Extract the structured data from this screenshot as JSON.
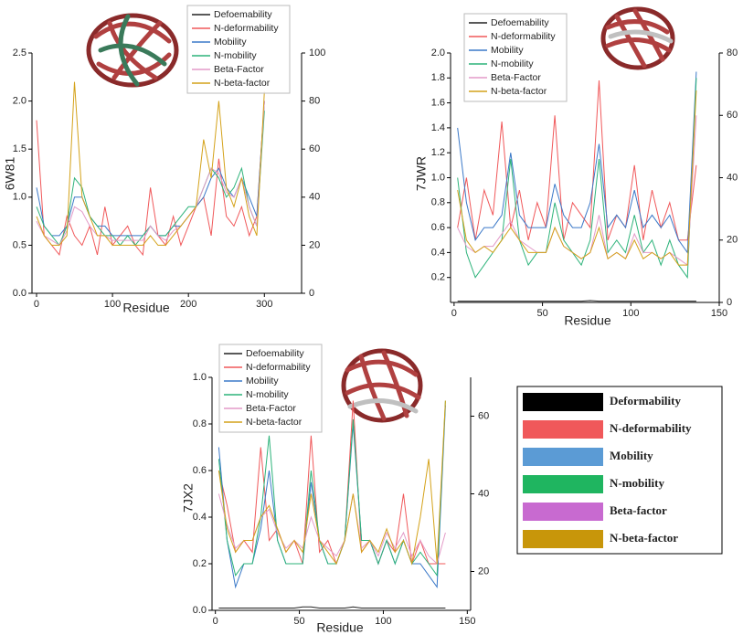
{
  "chart_data": [
    {
      "type": "line",
      "y_label": "6W81",
      "x_label": "Residue",
      "x": [
        0,
        10,
        20,
        30,
        40,
        50,
        60,
        70,
        80,
        90,
        100,
        110,
        120,
        130,
        140,
        150,
        160,
        170,
        180,
        190,
        200,
        210,
        220,
        230,
        240,
        250,
        260,
        270,
        280,
        290,
        300
      ],
      "xlim": [
        -6,
        349
      ],
      "xticks": [
        0,
        100,
        200,
        300
      ],
      "ylim": [
        0,
        2.5
      ],
      "yticks": [
        {
          "value": 0,
          "label": "0.0"
        },
        0.5,
        {
          "value": 1,
          "label": "1.0"
        },
        1.5,
        {
          "value": 2,
          "label": "2.0"
        },
        2.5
      ],
      "y2lim": [
        0,
        100
      ],
      "y2ticks": [
        0,
        20,
        40,
        60,
        80,
        100
      ],
      "series": [
        {
          "name": "Defoemability",
          "color": "#222222",
          "values": [
            0,
            0,
            0,
            0,
            0,
            0,
            0,
            0,
            0,
            0,
            0,
            0,
            0,
            0,
            0,
            0,
            0,
            0,
            0,
            0,
            0,
            0,
            0,
            0,
            0,
            0,
            0,
            0,
            0,
            0,
            0
          ]
        },
        {
          "name": "N-deformability",
          "color": "#f0585a",
          "values": [
            1.8,
            0.6,
            0.5,
            0.4,
            0.8,
            0.6,
            0.5,
            0.7,
            0.4,
            0.9,
            0.5,
            0.6,
            0.7,
            0.5,
            0.4,
            1.1,
            0.6,
            0.5,
            0.8,
            0.5,
            0.7,
            0.9,
            1.0,
            0.6,
            1.4,
            0.8,
            0.7,
            0.9,
            0.6,
            0.8,
            2.0
          ]
        },
        {
          "name": "Mobility",
          "color": "#3a78c8",
          "values": [
            1.1,
            0.7,
            0.6,
            0.6,
            0.7,
            1.0,
            1.0,
            0.8,
            0.7,
            0.7,
            0.6,
            0.6,
            0.6,
            0.6,
            0.6,
            0.7,
            0.6,
            0.6,
            0.7,
            0.7,
            0.8,
            0.9,
            1.0,
            1.2,
            1.3,
            1.1,
            1.0,
            1.2,
            1.0,
            0.8,
            2.0
          ]
        },
        {
          "name": "N-mobility",
          "color": "#2db37a",
          "values": [
            0.9,
            0.7,
            0.6,
            0.5,
            0.7,
            1.2,
            1.1,
            0.8,
            0.7,
            0.6,
            0.6,
            0.5,
            0.6,
            0.5,
            0.6,
            0.7,
            0.6,
            0.6,
            0.7,
            0.8,
            0.9,
            0.9,
            1.1,
            1.3,
            1.2,
            1.0,
            1.1,
            1.3,
            0.9,
            0.7,
            1.9
          ]
        },
        {
          "name": "Beta-Factor",
          "color": "#e39ac8",
          "axis": "y2",
          "values": [
            30,
            24,
            22,
            20,
            26,
            36,
            34,
            28,
            24,
            24,
            22,
            22,
            22,
            22,
            22,
            28,
            24,
            22,
            26,
            28,
            32,
            36,
            44,
            52,
            50,
            42,
            40,
            48,
            36,
            28,
            80
          ]
        },
        {
          "name": "N-beta-factor",
          "color": "#d4a21a",
          "values": [
            0.8,
            0.6,
            0.5,
            0.5,
            0.6,
            2.2,
            1.0,
            0.8,
            0.6,
            0.6,
            0.5,
            0.5,
            0.5,
            0.5,
            0.5,
            0.6,
            0.5,
            0.5,
            0.6,
            0.7,
            0.8,
            0.9,
            1.6,
            1.2,
            2.0,
            1.1,
            0.9,
            1.2,
            0.8,
            0.6,
            2.1
          ]
        }
      ]
    },
    {
      "type": "line",
      "y_label": "7JWR",
      "x_label": "Residue",
      "x": [
        2,
        7,
        12,
        17,
        22,
        27,
        32,
        37,
        42,
        47,
        52,
        57,
        62,
        67,
        72,
        77,
        82,
        87,
        92,
        97,
        102,
        107,
        112,
        117,
        122,
        127,
        132,
        137
      ],
      "xlim": [
        -2,
        150
      ],
      "xticks": [
        0,
        50,
        100,
        150
      ],
      "ylim": [
        0,
        2.0
      ],
      "yticks": [
        0.2,
        0.4,
        0.6,
        0.8,
        {
          "value": 1,
          "label": "1.0"
        },
        1.2,
        1.4,
        1.6,
        1.8,
        {
          "value": 2,
          "label": "2.0"
        }
      ],
      "y2lim": [
        0,
        80
      ],
      "y2ticks": [
        0,
        20,
        40,
        60,
        80
      ],
      "series": [
        {
          "name": "Defoemability",
          "color": "#222222",
          "values": [
            0.01,
            0.01,
            0.01,
            0.01,
            0.01,
            0.01,
            0.01,
            0.01,
            0.01,
            0.01,
            0.01,
            0.01,
            0.01,
            0.01,
            0.01,
            0.015,
            0.01,
            0.01,
            0.01,
            0.01,
            0.01,
            0.01,
            0.01,
            0.01,
            0.01,
            0.01,
            0.01,
            0.01
          ]
        },
        {
          "name": "N-deformability",
          "color": "#f0585a",
          "values": [
            0.6,
            1.0,
            0.5,
            0.9,
            0.7,
            1.45,
            0.6,
            0.9,
            0.5,
            0.8,
            0.6,
            1.5,
            0.5,
            0.8,
            0.7,
            0.6,
            1.78,
            0.5,
            0.7,
            0.6,
            1.1,
            0.5,
            0.9,
            0.6,
            0.8,
            0.5,
            0.5,
            1.1
          ]
        },
        {
          "name": "Mobility",
          "color": "#3a78c8",
          "values": [
            1.4,
            0.8,
            0.5,
            0.6,
            0.6,
            0.7,
            1.2,
            0.7,
            0.6,
            0.6,
            0.6,
            0.95,
            0.7,
            0.6,
            0.6,
            0.8,
            1.27,
            0.6,
            0.7,
            0.6,
            0.9,
            0.6,
            0.7,
            0.6,
            0.7,
            0.5,
            0.4,
            1.85
          ]
        },
        {
          "name": "N-mobility",
          "color": "#2db37a",
          "values": [
            1.0,
            0.4,
            0.2,
            0.3,
            0.4,
            0.5,
            1.15,
            0.5,
            0.3,
            0.4,
            0.4,
            0.8,
            0.5,
            0.4,
            0.3,
            0.5,
            1.15,
            0.4,
            0.5,
            0.4,
            0.7,
            0.4,
            0.5,
            0.3,
            0.5,
            0.3,
            0.2,
            1.8
          ]
        },
        {
          "name": "Beta-Factor",
          "color": "#e39ac8",
          "axis": "y2",
          "values": [
            24,
            18,
            16,
            18,
            18,
            22,
            26,
            20,
            18,
            16,
            16,
            24,
            18,
            16,
            14,
            16,
            28,
            14,
            16,
            14,
            22,
            16,
            16,
            14,
            16,
            14,
            12,
            60
          ]
        },
        {
          "name": "N-beta-factor",
          "color": "#d4a21a",
          "values": [
            0.9,
            0.5,
            0.4,
            0.45,
            0.4,
            0.5,
            0.6,
            0.5,
            0.4,
            0.4,
            0.4,
            0.6,
            0.45,
            0.4,
            0.35,
            0.4,
            0.6,
            0.35,
            0.4,
            0.35,
            0.5,
            0.35,
            0.4,
            0.35,
            0.4,
            0.3,
            0.3,
            1.7
          ]
        }
      ]
    },
    {
      "type": "line",
      "y_label": "7JX2",
      "x_label": "Residue",
      "x": [
        2,
        7,
        12,
        17,
        22,
        27,
        32,
        37,
        42,
        47,
        52,
        57,
        62,
        67,
        72,
        77,
        82,
        87,
        92,
        97,
        102,
        107,
        112,
        117,
        122,
        127,
        132,
        137
      ],
      "xlim": [
        -2,
        152
      ],
      "xticks": [
        0,
        50,
        100,
        150
      ],
      "ylim": [
        0,
        1.0
      ],
      "yticks": [
        {
          "value": 0,
          "label": "0.0"
        },
        0.2,
        0.4,
        0.6,
        0.8,
        {
          "value": 1,
          "label": "1.0"
        }
      ],
      "y2lim": [
        10,
        70
      ],
      "y2ticks": [
        20,
        40,
        60
      ],
      "series": [
        {
          "name": "Defoemability",
          "color": "#222222",
          "values": [
            0.01,
            0.01,
            0.01,
            0.01,
            0.01,
            0.01,
            0.01,
            0.01,
            0.01,
            0.01,
            0.015,
            0.015,
            0.01,
            0.01,
            0.01,
            0.01,
            0.015,
            0.01,
            0.01,
            0.01,
            0.01,
            0.01,
            0.01,
            0.01,
            0.01,
            0.01,
            0.01,
            0.01
          ]
        },
        {
          "name": "N-deformability",
          "color": "#f0585a",
          "values": [
            0.6,
            0.45,
            0.25,
            0.3,
            0.25,
            0.7,
            0.3,
            0.35,
            0.25,
            0.3,
            0.2,
            0.75,
            0.25,
            0.3,
            0.2,
            0.3,
            0.9,
            0.25,
            0.3,
            0.2,
            0.3,
            0.25,
            0.5,
            0.2,
            0.3,
            0.2,
            0.2,
            0.2
          ]
        },
        {
          "name": "Mobility",
          "color": "#3a78c8",
          "values": [
            0.7,
            0.3,
            0.1,
            0.2,
            0.2,
            0.35,
            0.6,
            0.3,
            0.2,
            0.2,
            0.2,
            0.55,
            0.3,
            0.2,
            0.2,
            0.3,
            0.8,
            0.3,
            0.3,
            0.2,
            0.3,
            0.2,
            0.3,
            0.2,
            0.2,
            0.15,
            0.1,
            0.88
          ]
        },
        {
          "name": "N-mobility",
          "color": "#2db37a",
          "values": [
            0.65,
            0.3,
            0.15,
            0.2,
            0.2,
            0.4,
            0.75,
            0.3,
            0.2,
            0.2,
            0.2,
            0.6,
            0.3,
            0.2,
            0.2,
            0.3,
            0.82,
            0.3,
            0.3,
            0.2,
            0.3,
            0.2,
            0.3,
            0.2,
            0.25,
            0.2,
            0.15,
            0.9
          ]
        },
        {
          "name": "Beta-Factor",
          "color": "#e39ac8",
          "axis": "y2",
          "values": [
            40,
            32,
            26,
            28,
            28,
            34,
            36,
            30,
            26,
            28,
            26,
            34,
            28,
            26,
            24,
            28,
            40,
            26,
            28,
            24,
            30,
            26,
            30,
            24,
            28,
            24,
            22,
            30
          ]
        },
        {
          "name": "N-beta-factor",
          "color": "#d4a21a",
          "values": [
            0.6,
            0.35,
            0.25,
            0.3,
            0.3,
            0.4,
            0.45,
            0.35,
            0.25,
            0.3,
            0.25,
            0.5,
            0.3,
            0.25,
            0.2,
            0.3,
            0.5,
            0.25,
            0.3,
            0.25,
            0.35,
            0.25,
            0.3,
            0.2,
            0.4,
            0.65,
            0.2,
            0.9
          ]
        }
      ]
    }
  ],
  "legend_box": {
    "entries": [
      {
        "label": "Deformability",
        "color": "#000000"
      },
      {
        "label": "N-deformability",
        "color": "#f0585a"
      },
      {
        "label": "Mobility",
        "color": "#5b9bd5"
      },
      {
        "label": "N-mobility",
        "color": "#1fb560"
      },
      {
        "label": "Beta-factor",
        "color": "#c86ad0"
      },
      {
        "label": "N-beta-factor",
        "color": "#c8960a"
      }
    ]
  }
}
